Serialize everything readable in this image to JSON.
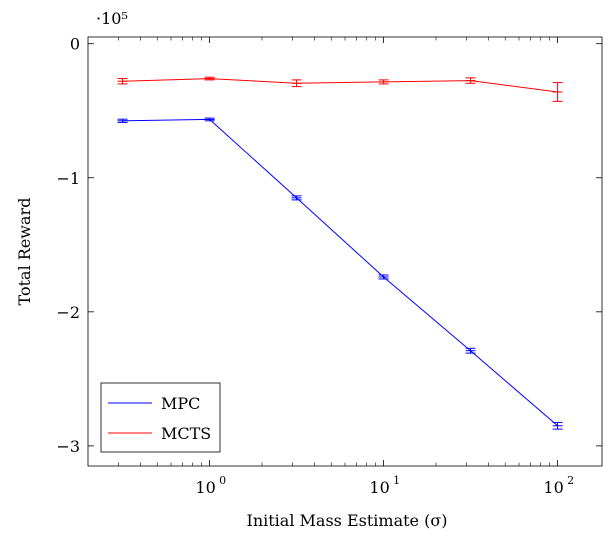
{
  "chart_data": {
    "type": "line",
    "xlabel": "Initial Mass Estimate (σ)",
    "ylabel": "Total Reward",
    "y_multiplier": "·10⁵",
    "x_scale": "log",
    "xlim": [
      0.2,
      180
    ],
    "ylim": [
      -3.15,
      0.05
    ],
    "x_ticks": [
      {
        "value": 1,
        "base": "10",
        "exp": "0"
      },
      {
        "value": 10,
        "base": "10",
        "exp": "1"
      },
      {
        "value": 100,
        "base": "10",
        "exp": "2"
      }
    ],
    "y_ticks": [
      {
        "value": 0,
        "label": "0"
      },
      {
        "value": -1,
        "label": "−1"
      },
      {
        "value": -2,
        "label": "−2"
      },
      {
        "value": -3,
        "label": "−3"
      }
    ],
    "legend_position": "bottom-left",
    "grid": false,
    "series": [
      {
        "name": "MPC",
        "color": "#0000ff",
        "x": [
          0.316,
          1,
          3.16,
          10,
          31.6,
          100
        ],
        "y": [
          -0.575,
          -0.565,
          -1.15,
          -1.74,
          -2.29,
          -2.85
        ],
        "err": [
          0.012,
          0.01,
          0.015,
          0.015,
          0.018,
          0.025
        ]
      },
      {
        "name": "MCTS",
        "color": "#ff0000",
        "x": [
          0.316,
          1,
          3.16,
          10,
          31.6,
          100
        ],
        "y": [
          -0.28,
          -0.26,
          -0.295,
          -0.285,
          -0.275,
          -0.36
        ],
        "err": [
          0.02,
          0.01,
          0.025,
          0.015,
          0.02,
          0.07
        ]
      }
    ]
  }
}
